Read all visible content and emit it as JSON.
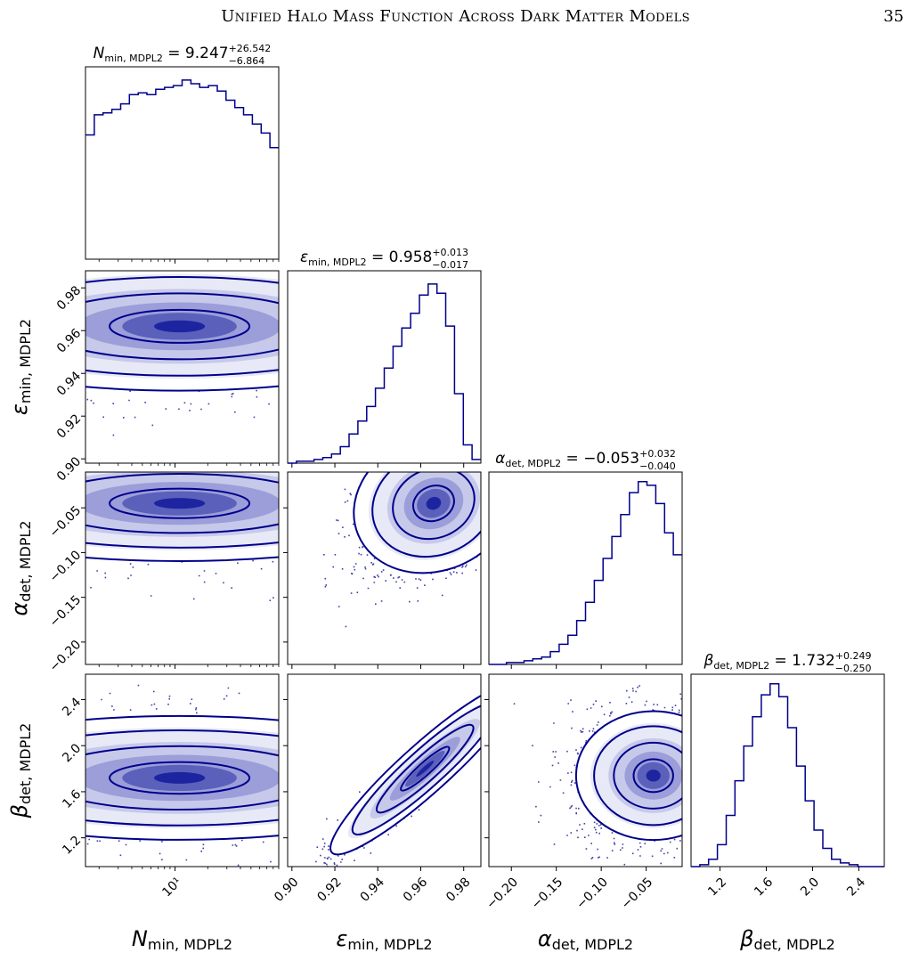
{
  "header": {
    "running_title": "Unified Halo Mass Function Across Dark Matter Models",
    "page_number": "35"
  },
  "chart_data": {
    "type": "corner",
    "color": "#00008b",
    "parameters": [
      {
        "symbol": "N",
        "subscript": "min, MDPL2",
        "scale": "log",
        "range": [
          1.5,
          90
        ],
        "ticks": [
          10
        ],
        "tick_labels": [
          "10¹"
        ],
        "median": "9.247",
        "upper_err": "+26.542",
        "lower_err": "−6.864",
        "mode": 11,
        "hist_values": [
          0.68,
          0.79,
          0.8,
          0.82,
          0.85,
          0.9,
          0.91,
          0.9,
          0.93,
          0.94,
          0.95,
          0.98,
          0.96,
          0.94,
          0.95,
          0.92,
          0.87,
          0.83,
          0.79,
          0.74,
          0.69,
          0.61
        ]
      },
      {
        "symbol": "ε",
        "subscript": "min, MDPL2",
        "scale": "linear",
        "range": [
          0.898,
          0.988
        ],
        "ticks": [
          0.9,
          0.92,
          0.94,
          0.96,
          0.98
        ],
        "tick_labels": [
          "0.90",
          "0.92",
          "0.94",
          "0.96",
          "0.98"
        ],
        "median": "0.958",
        "upper_err": "+0.013",
        "lower_err": "−0.017",
        "mode": 0.964,
        "hist_values": [
          0.0,
          0.01,
          0.01,
          0.02,
          0.03,
          0.05,
          0.09,
          0.16,
          0.23,
          0.31,
          0.41,
          0.52,
          0.64,
          0.74,
          0.82,
          0.92,
          0.98,
          0.93,
          0.75,
          0.38,
          0.1,
          0.02
        ]
      },
      {
        "symbol": "α",
        "subscript": "det, MDPL2",
        "scale": "linear",
        "range": [
          -0.225,
          -0.01
        ],
        "ticks": [
          -0.2,
          -0.15,
          -0.1,
          -0.05
        ],
        "tick_labels": [
          "−0.20",
          "−0.15",
          "−0.10",
          "−0.05"
        ],
        "median": "−0.053",
        "upper_err": "+0.032",
        "lower_err": "−0.040",
        "mode": -0.042,
        "hist_values": [
          0.0,
          0.0,
          0.01,
          0.01,
          0.02,
          0.03,
          0.04,
          0.07,
          0.11,
          0.16,
          0.24,
          0.34,
          0.46,
          0.58,
          0.7,
          0.82,
          0.94,
          1.0,
          0.98,
          0.88,
          0.72,
          0.6
        ]
      },
      {
        "symbol": "β",
        "subscript": "det, MDPL2",
        "scale": "linear",
        "range": [
          0.95,
          2.62
        ],
        "ticks": [
          1.2,
          1.6,
          2.0,
          2.4
        ],
        "tick_labels": [
          "1.2",
          "1.6",
          "2.0",
          "2.4"
        ],
        "median": "1.732",
        "upper_err": "+0.249",
        "lower_err": "−0.250",
        "mode": 1.73,
        "hist_values": [
          0.0,
          0.01,
          0.04,
          0.12,
          0.28,
          0.47,
          0.66,
          0.82,
          0.94,
          1.0,
          0.93,
          0.76,
          0.55,
          0.36,
          0.2,
          0.1,
          0.04,
          0.02,
          0.01,
          0.0,
          0.0,
          0.0
        ]
      }
    ],
    "pairs": [
      {
        "row": 1,
        "col": 0,
        "cx": 11,
        "cy": 0.962,
        "sx": 0.9,
        "sy": 0.014,
        "rho": 0.0
      },
      {
        "row": 2,
        "col": 0,
        "cx": 11,
        "cy": -0.045,
        "sx": 0.9,
        "sy": 0.03,
        "rho": 0.0
      },
      {
        "row": 2,
        "col": 1,
        "cx": 0.966,
        "cy": -0.045,
        "sx": 0.016,
        "sy": 0.035,
        "rho": 0.45
      },
      {
        "row": 3,
        "col": 0,
        "cx": 11,
        "cy": 1.72,
        "sx": 0.9,
        "sy": 0.25,
        "rho": 0.0
      },
      {
        "row": 3,
        "col": 1,
        "cx": 0.962,
        "cy": 1.8,
        "sx": 0.017,
        "sy": 0.3,
        "rho": 0.95
      },
      {
        "row": 3,
        "col": 2,
        "cx": -0.042,
        "cy": 1.74,
        "sx": 0.04,
        "sy": 0.26,
        "rho": 0.0
      }
    ]
  }
}
